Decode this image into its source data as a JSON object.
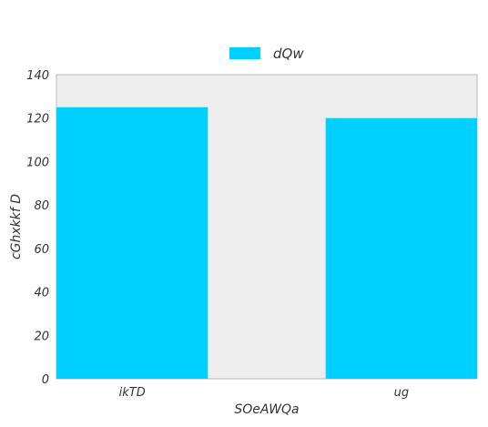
{
  "chart_data": {
    "type": "bar",
    "title": "",
    "xlabel": "SOeAWQa",
    "ylabel": "cGhxkkf D",
    "categories": [
      "ikTD",
      "ug"
    ],
    "series": [
      {
        "name": "dQw",
        "values": [
          125,
          120
        ]
      }
    ],
    "ylim": [
      0,
      140
    ],
    "yticks": [
      0,
      20,
      40,
      60,
      80,
      100,
      120,
      140
    ],
    "grid": false,
    "legend_position": "top-center",
    "colors": {
      "bar": "#00d0ff",
      "plot_background": "#eeeeee",
      "frame": "#bbbbbb"
    }
  }
}
